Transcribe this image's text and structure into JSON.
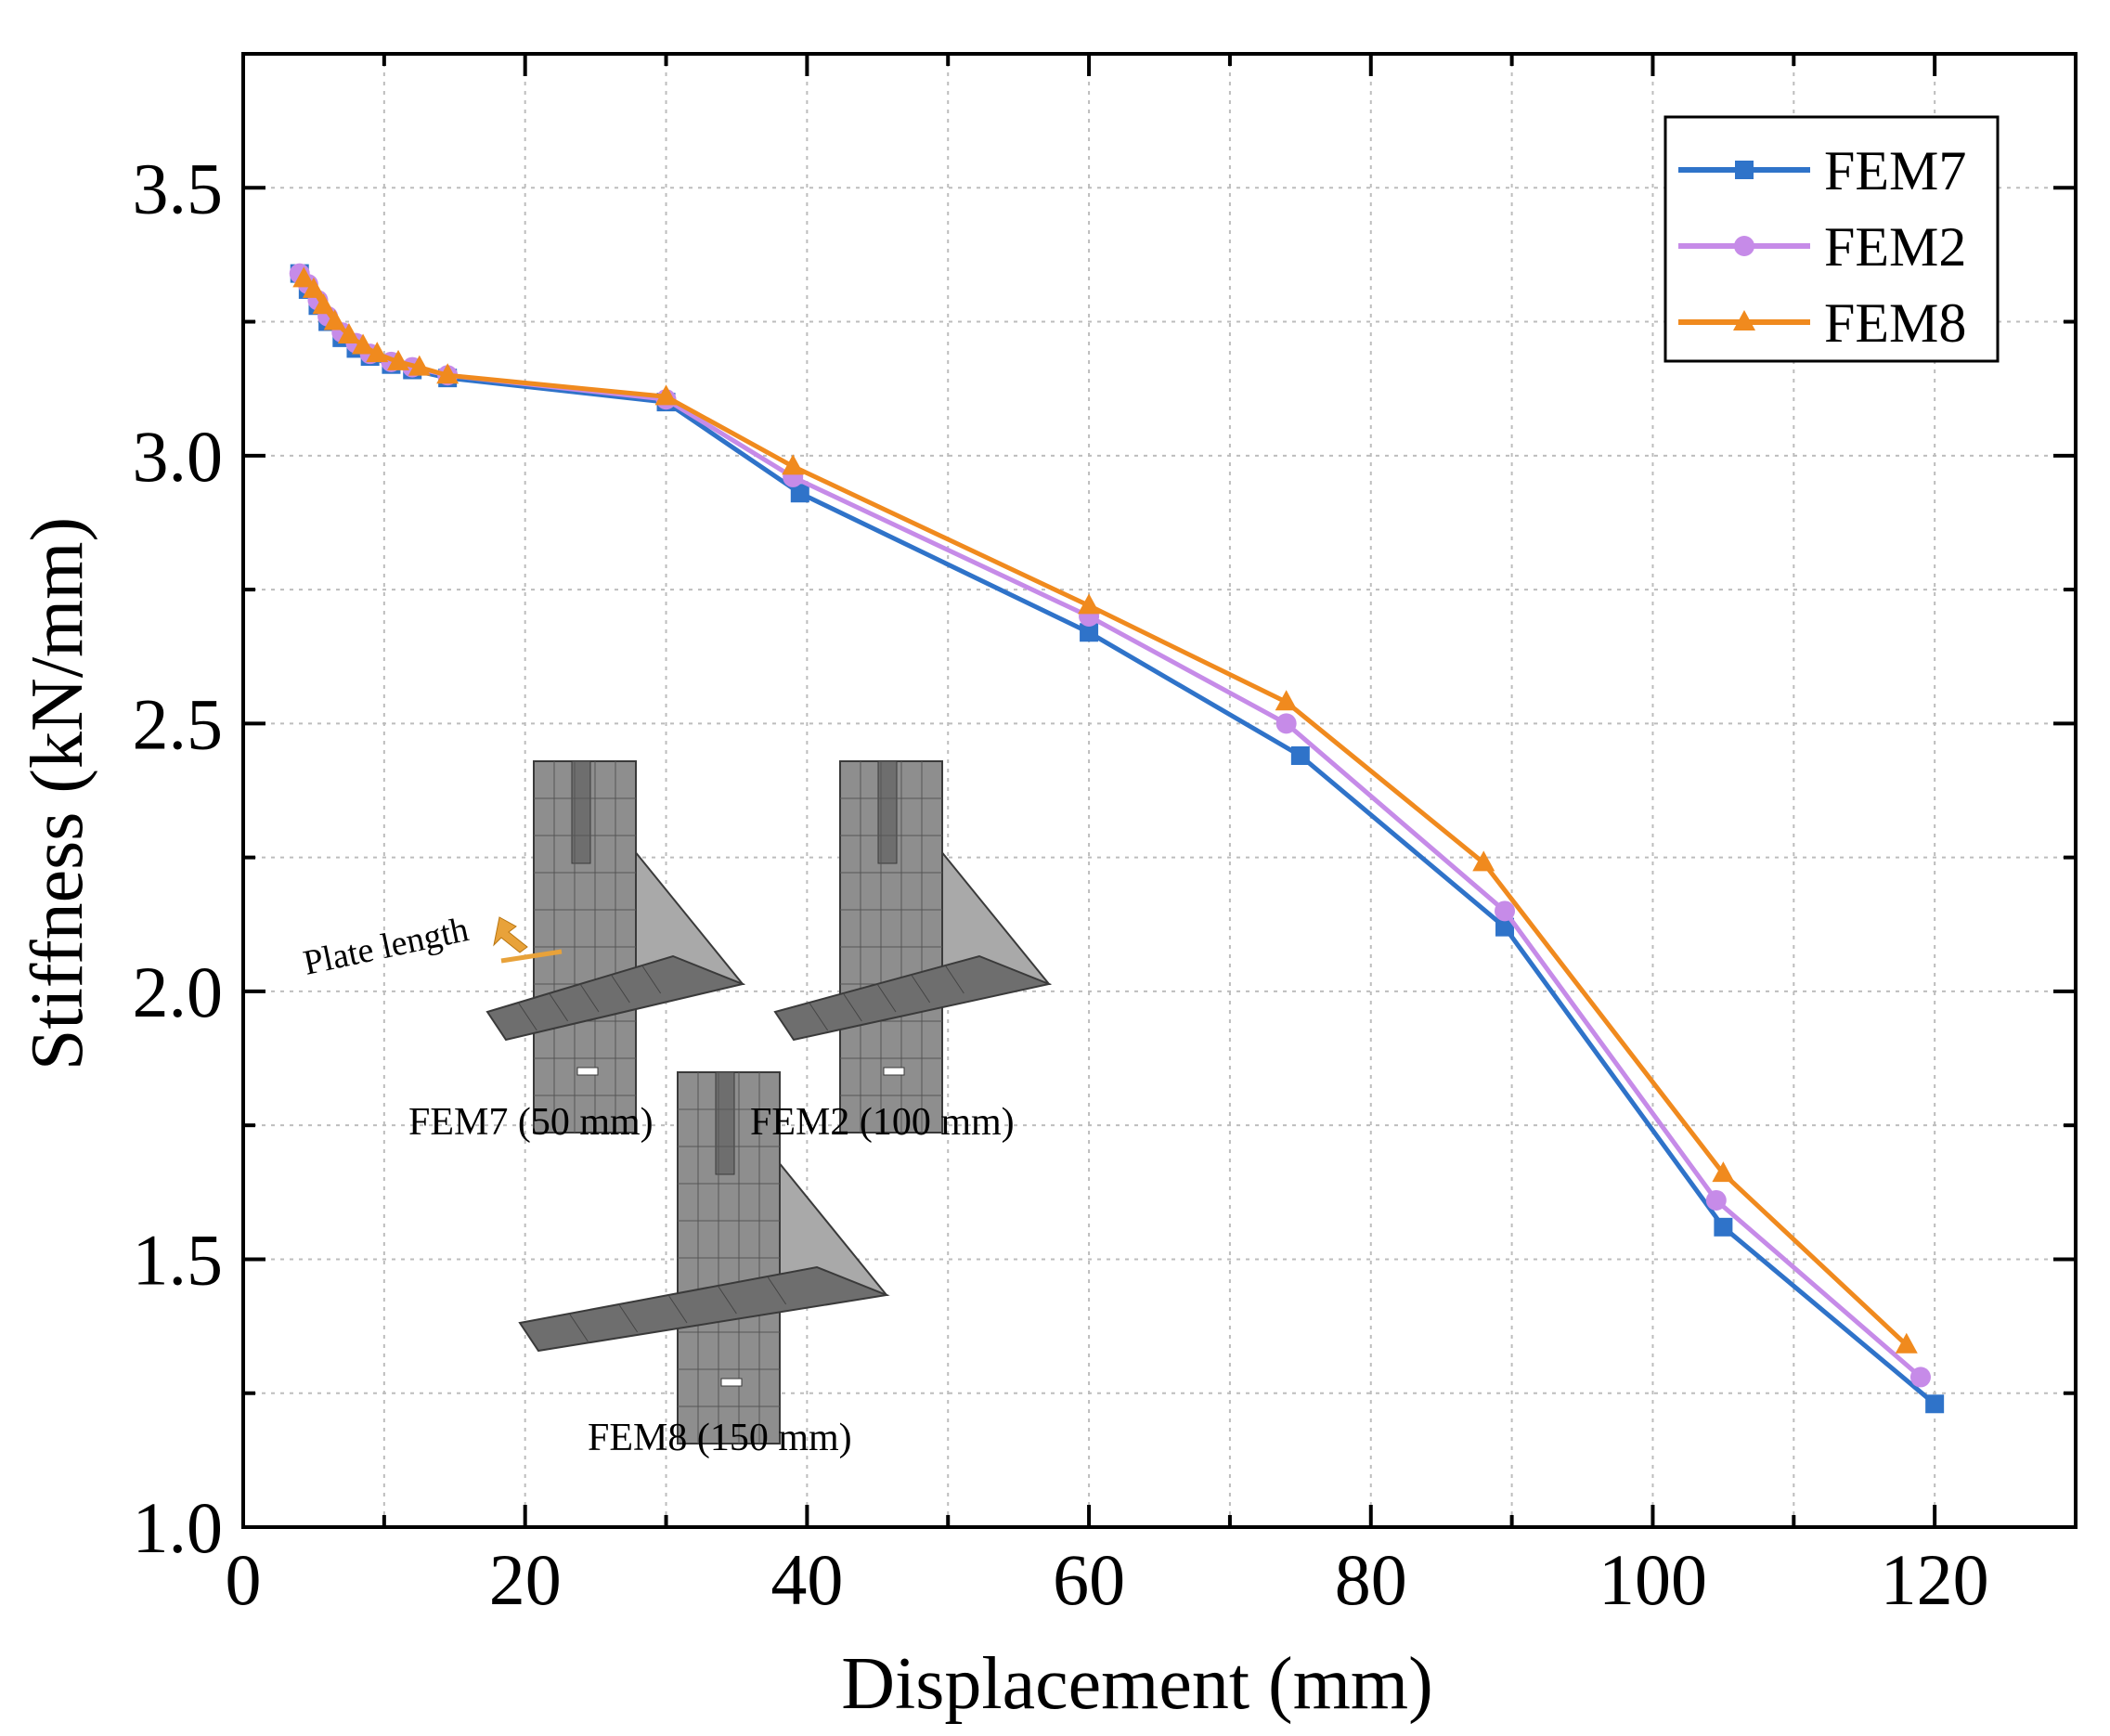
{
  "chart_data": {
    "type": "line",
    "title": "",
    "xlabel": "Displacement (mm)",
    "ylabel": "Stiffness (kN/mm)",
    "xlim": [
      0,
      130
    ],
    "ylim": [
      1.0,
      3.75
    ],
    "xticks": [
      0,
      20,
      40,
      60,
      80,
      100,
      120
    ],
    "yticks": [
      1.0,
      1.5,
      2.0,
      2.5,
      3.0,
      3.5
    ],
    "xtick_labels": [
      "0",
      "20",
      "40",
      "60",
      "80",
      "100",
      "120"
    ],
    "ytick_labels": [
      "1.0",
      "1.5",
      "2.0",
      "2.5",
      "3.0",
      "3.5"
    ],
    "grid": true,
    "legend_position": "top-right",
    "series": [
      {
        "name": "FEM7",
        "color": "#2f73c9",
        "marker": "square",
        "x": [
          4.0,
          4.6,
          5.3,
          6.0,
          7.0,
          8.0,
          9.0,
          10.5,
          12.0,
          14.5,
          30.0,
          39.5,
          60.0,
          75.0,
          89.5,
          105.0,
          120.0
        ],
        "y": [
          3.34,
          3.31,
          3.28,
          3.25,
          3.22,
          3.2,
          3.185,
          3.17,
          3.16,
          3.145,
          3.1,
          2.93,
          2.67,
          2.44,
          2.12,
          1.56,
          1.23
        ]
      },
      {
        "name": "FEM2",
        "color": "#c68be8",
        "marker": "circle",
        "x": [
          4.0,
          4.6,
          5.3,
          6.0,
          7.0,
          8.0,
          9.0,
          10.5,
          12.0,
          14.5,
          30.0,
          39.0,
          60.0,
          74.0,
          89.5,
          104.5,
          119.0
        ],
        "y": [
          3.34,
          3.32,
          3.29,
          3.26,
          3.23,
          3.21,
          3.19,
          3.175,
          3.165,
          3.15,
          3.105,
          2.96,
          2.7,
          2.5,
          2.15,
          1.61,
          1.28
        ]
      },
      {
        "name": "FEM8",
        "color": "#f08a1e",
        "marker": "triangle",
        "x": [
          4.3,
          5.0,
          5.7,
          6.5,
          7.5,
          8.5,
          9.5,
          11.0,
          12.5,
          14.5,
          30.0,
          39.0,
          60.0,
          74.0,
          88.0,
          105.0,
          118.0
        ],
        "y": [
          3.33,
          3.31,
          3.28,
          3.25,
          3.225,
          3.205,
          3.19,
          3.175,
          3.165,
          3.15,
          3.11,
          2.98,
          2.72,
          2.54,
          2.24,
          1.66,
          1.34
        ]
      }
    ],
    "annotations": [
      "Plate length",
      "FEM7 (50 mm)",
      "FEM2 (100 mm)",
      "FEM8 (150 mm)"
    ]
  },
  "inset": {
    "note": "Plate length",
    "labels": [
      "FEM7 (50 mm)",
      "FEM2 (100 mm)",
      "FEM8 (150 mm)"
    ]
  }
}
